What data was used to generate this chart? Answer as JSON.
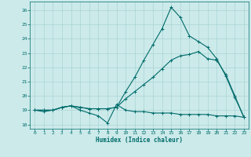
{
  "title": "",
  "xlabel": "Humidex (Indice chaleur)",
  "ylabel": "",
  "background_color": "#cceaea",
  "grid_color": "#aad4d4",
  "line_color": "#006b6b",
  "xlim": [
    -0.5,
    23.5
  ],
  "ylim": [
    17.7,
    26.6
  ],
  "xticks": [
    0,
    1,
    2,
    3,
    4,
    5,
    6,
    7,
    8,
    9,
    10,
    11,
    12,
    13,
    14,
    15,
    16,
    17,
    18,
    19,
    20,
    21,
    22,
    23
  ],
  "yticks": [
    18,
    19,
    20,
    21,
    22,
    23,
    24,
    25,
    26
  ],
  "curve1_x": [
    0,
    1,
    2,
    3,
    4,
    5,
    6,
    7,
    8,
    9,
    10,
    11,
    12,
    13,
    14,
    15,
    16,
    17,
    18,
    19,
    20,
    21,
    22,
    23
  ],
  "curve1_y": [
    19.0,
    18.9,
    19.0,
    19.2,
    19.3,
    19.0,
    18.8,
    18.6,
    18.1,
    19.4,
    19.0,
    18.9,
    18.9,
    18.8,
    18.8,
    18.8,
    18.7,
    18.7,
    18.7,
    18.7,
    18.6,
    18.6,
    18.6,
    18.5
  ],
  "curve2_x": [
    0,
    1,
    2,
    3,
    4,
    5,
    6,
    7,
    8,
    9,
    10,
    11,
    12,
    13,
    14,
    15,
    16,
    17,
    18,
    19,
    20,
    21,
    22,
    23
  ],
  "curve2_y": [
    19.0,
    19.0,
    19.0,
    19.2,
    19.3,
    19.2,
    19.1,
    19.1,
    19.1,
    19.2,
    19.8,
    20.3,
    20.8,
    21.3,
    21.9,
    22.5,
    22.8,
    22.9,
    23.1,
    22.6,
    22.5,
    21.5,
    20.0,
    18.5
  ],
  "curve3_x": [
    0,
    1,
    2,
    3,
    4,
    5,
    6,
    7,
    8,
    9,
    10,
    11,
    12,
    13,
    14,
    15,
    16,
    17,
    18,
    19,
    20,
    21,
    22,
    23
  ],
  "curve3_y": [
    19.0,
    19.0,
    19.0,
    19.2,
    19.3,
    19.2,
    19.1,
    19.1,
    19.1,
    19.2,
    20.3,
    21.3,
    22.5,
    23.6,
    24.7,
    26.2,
    25.5,
    24.2,
    23.8,
    23.4,
    22.6,
    21.4,
    19.9,
    18.5
  ]
}
